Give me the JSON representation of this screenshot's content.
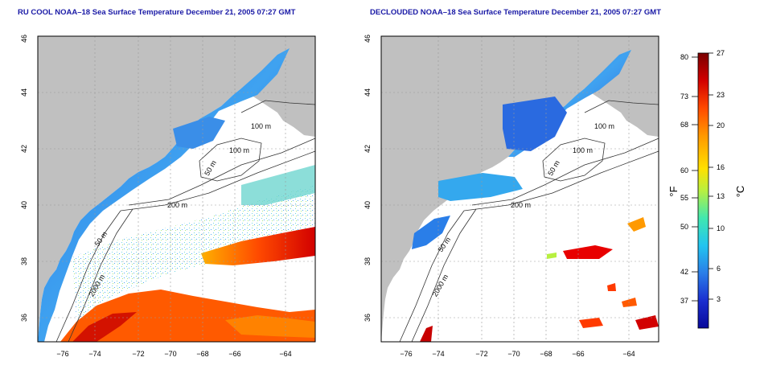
{
  "panels": [
    {
      "title": "RU COOL NOAA–18 Sea Surface Temperature December 21, 2005 07:27 GMT",
      "x_ticks": [
        "−76",
        "−74",
        "−72",
        "−70",
        "−68",
        "−66",
        "−64"
      ],
      "y_ticks": [
        "36",
        "38",
        "40",
        "42",
        "44",
        "46"
      ],
      "contours": [
        "100 m",
        "100 m",
        "50 m",
        "200 m",
        "50 m",
        "2000 m"
      ]
    },
    {
      "title": "DECLOUDED NOAA–18 Sea Surface Temperature December 21, 2005 07:27 GMT",
      "x_ticks": [
        "−76",
        "−74",
        "−72",
        "−70",
        "−68",
        "−66",
        "−64"
      ],
      "y_ticks": [
        "36",
        "38",
        "40",
        "42",
        "44",
        "46"
      ],
      "contours": [
        "100 m",
        "100 m",
        "50 m",
        "200 m",
        "50 m",
        "2000 m"
      ]
    }
  ],
  "colorbar": {
    "f_label": "°F",
    "c_label": "°C",
    "f_ticks": [
      "80",
      "73",
      "68",
      "60",
      "55",
      "50",
      "42",
      "37"
    ],
    "c_ticks": [
      "27",
      "23",
      "20",
      "16",
      "13",
      "10",
      "6",
      "3"
    ],
    "colors": [
      "#7a0000",
      "#c40000",
      "#ff3a00",
      "#ff8a00",
      "#ffd400",
      "#c8f53c",
      "#5ef0a0",
      "#22d4e6",
      "#2a9cf0",
      "#2a5ee0",
      "#1a22c8",
      "#0a0a9a"
    ]
  }
}
